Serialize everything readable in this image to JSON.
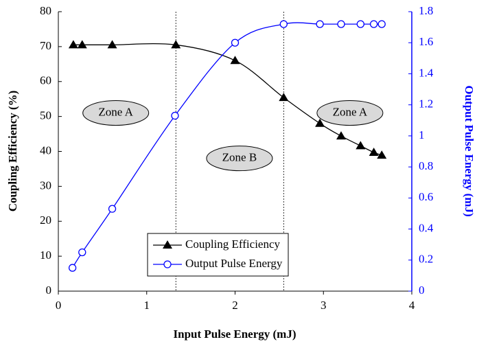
{
  "chart_data": {
    "type": "line",
    "xlabel": "Input Pulse Energy (mJ)",
    "ylabel": "Coupling Efficiency (%)",
    "y2label": "Output Pulse Energy (mJ)",
    "xlim": [
      0,
      4
    ],
    "xticks": [
      0,
      1,
      2,
      3,
      4
    ],
    "ylim": [
      0,
      80
    ],
    "yticks": [
      0,
      10,
      20,
      30,
      40,
      50,
      60,
      70,
      80
    ],
    "y2lim": [
      0,
      1.8
    ],
    "y2ticks": [
      0,
      0.2,
      0.4,
      0.6,
      0.8,
      1,
      1.2,
      1.4,
      1.6,
      1.8
    ],
    "reference_lines": [
      1.33,
      2.55
    ],
    "annotations": [
      "Zone A",
      "Zone B",
      "Zone A"
    ],
    "legend": "lower center",
    "series": [
      {
        "name": "Coupling Efficiency",
        "color": "#000000",
        "marker": "triangle",
        "x": [
          0.17,
          0.27,
          0.61,
          1.33,
          2.0,
          2.55,
          2.96,
          3.2,
          3.42,
          3.57,
          3.66
        ],
        "values": [
          70.5,
          70.5,
          70.5,
          70.5,
          66,
          55.4,
          48,
          44.4,
          41.6,
          39.7,
          38.9
        ]
      },
      {
        "name": "Output Pulse Energy",
        "color": "#0000ff",
        "marker": "circle",
        "axis": "y2",
        "x": [
          0.16,
          0.27,
          0.61,
          1.32,
          2.0,
          2.55,
          2.96,
          3.2,
          3.42,
          3.57,
          3.66
        ],
        "values": [
          0.15,
          0.25,
          0.53,
          1.13,
          1.6,
          1.72,
          1.72,
          1.72,
          1.72,
          1.72,
          1.72
        ]
      }
    ]
  }
}
